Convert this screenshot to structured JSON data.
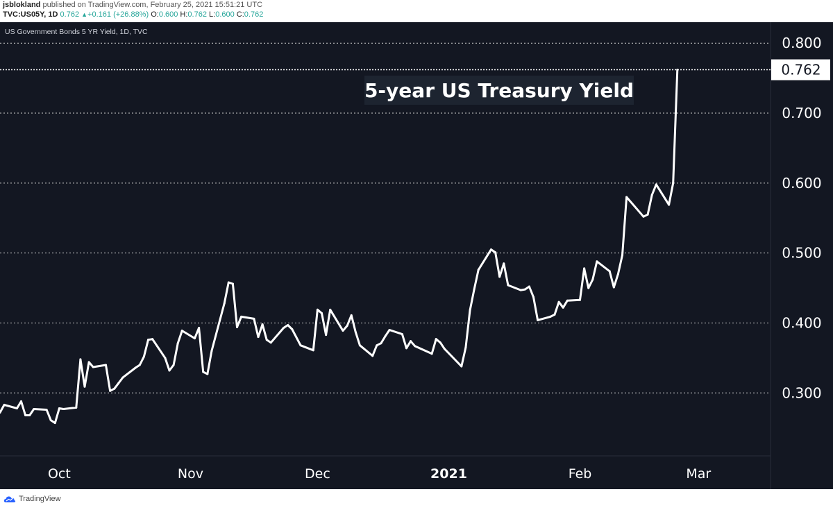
{
  "header": {
    "author": "jsblokland",
    "published": "published on TradingView.com, February 25, 2021 15:51:21 UTC",
    "symbol": "TVC:US05Y, 1D",
    "last": "0.762",
    "change": "+0.161 (+26.88%)",
    "open_label": "O:",
    "open": "0.600",
    "high_label": "H:",
    "high": "0.762",
    "low_label": "L:",
    "low": "0.600",
    "close_label": "C:",
    "close": "0.762"
  },
  "colors": {
    "background": "#131722",
    "line": "#ffffff",
    "accent_up": "#26a69a",
    "grid": "#d0d0d0"
  },
  "footer": {
    "brand": "TradingView",
    "icon": "tradingview-logo-icon"
  },
  "chart_data": {
    "type": "line",
    "title": "US Government Bonds 5 YR Yield, 1D, TVC",
    "annotation": "5-year US Treasury Yield",
    "last_price_label": "0.762",
    "ylim": [
      0.21,
      0.83
    ],
    "y_ticks": [
      0.3,
      0.4,
      0.5,
      0.6,
      0.7,
      0.8
    ],
    "y_tick_labels": [
      "0.300",
      "0.400",
      "0.500",
      "0.600",
      "0.700",
      "0.800"
    ],
    "grid": "horizontal dashed",
    "xlim": [
      "2020-09-17",
      "2021-03-18"
    ],
    "x_ticks": [
      {
        "date": "2020-10-01",
        "label": "Oct"
      },
      {
        "date": "2020-11-01",
        "label": "Nov"
      },
      {
        "date": "2020-12-01",
        "label": "Dec"
      },
      {
        "date": "2021-01-01",
        "label": "2021"
      },
      {
        "date": "2021-02-01",
        "label": "Feb"
      },
      {
        "date": "2021-03-01",
        "label": "Mar"
      }
    ],
    "series": [
      {
        "values": [
          [
            "2020-09-17",
            0.272
          ],
          [
            "2020-09-18",
            0.283
          ],
          [
            "2020-09-21",
            0.278
          ],
          [
            "2020-09-22",
            0.288
          ],
          [
            "2020-09-23",
            0.268
          ],
          [
            "2020-09-24",
            0.268
          ],
          [
            "2020-09-25",
            0.277
          ],
          [
            "2020-09-28",
            0.276
          ],
          [
            "2020-09-29",
            0.261
          ],
          [
            "2020-09-30",
            0.257
          ],
          [
            "2020-10-01",
            0.278
          ],
          [
            "2020-10-02",
            0.277
          ],
          [
            "2020-10-05",
            0.279
          ],
          [
            "2020-10-06",
            0.348
          ],
          [
            "2020-10-07",
            0.309
          ],
          [
            "2020-10-08",
            0.344
          ],
          [
            "2020-10-09",
            0.337
          ],
          [
            "2020-10-12",
            0.34
          ],
          [
            "2020-10-13",
            0.303
          ],
          [
            "2020-10-14",
            0.306
          ],
          [
            "2020-10-15",
            0.314
          ],
          [
            "2020-10-16",
            0.322
          ],
          [
            "2020-10-19",
            0.336
          ],
          [
            "2020-10-20",
            0.34
          ],
          [
            "2020-10-21",
            0.352
          ],
          [
            "2020-10-22",
            0.376
          ],
          [
            "2020-10-23",
            0.377
          ],
          [
            "2020-10-26",
            0.35
          ],
          [
            "2020-10-27",
            0.332
          ],
          [
            "2020-10-28",
            0.34
          ],
          [
            "2020-10-29",
            0.371
          ],
          [
            "2020-10-30",
            0.389
          ],
          [
            "2020-11-02",
            0.378
          ],
          [
            "2020-11-03",
            0.393
          ],
          [
            "2020-11-04",
            0.33
          ],
          [
            "2020-11-05",
            0.327
          ],
          [
            "2020-11-06",
            0.36
          ],
          [
            "2020-11-09",
            0.428
          ],
          [
            "2020-11-10",
            0.458
          ],
          [
            "2020-11-11",
            0.456
          ],
          [
            "2020-11-12",
            0.394
          ],
          [
            "2020-11-13",
            0.409
          ],
          [
            "2020-11-16",
            0.406
          ],
          [
            "2020-11-17",
            0.38
          ],
          [
            "2020-11-18",
            0.398
          ],
          [
            "2020-11-19",
            0.376
          ],
          [
            "2020-11-20",
            0.372
          ],
          [
            "2020-11-23",
            0.393
          ],
          [
            "2020-11-24",
            0.397
          ],
          [
            "2020-11-25",
            0.391
          ],
          [
            "2020-11-27",
            0.368
          ],
          [
            "2020-11-30",
            0.361
          ],
          [
            "2020-12-01",
            0.419
          ],
          [
            "2020-12-02",
            0.414
          ],
          [
            "2020-12-03",
            0.383
          ],
          [
            "2020-12-04",
            0.419
          ],
          [
            "2020-12-07",
            0.389
          ],
          [
            "2020-12-08",
            0.396
          ],
          [
            "2020-12-09",
            0.411
          ],
          [
            "2020-12-10",
            0.387
          ],
          [
            "2020-12-11",
            0.368
          ],
          [
            "2020-12-14",
            0.353
          ],
          [
            "2020-12-15",
            0.368
          ],
          [
            "2020-12-16",
            0.371
          ],
          [
            "2020-12-17",
            0.381
          ],
          [
            "2020-12-18",
            0.39
          ],
          [
            "2020-12-21",
            0.384
          ],
          [
            "2020-12-22",
            0.364
          ],
          [
            "2020-12-23",
            0.374
          ],
          [
            "2020-12-24",
            0.367
          ],
          [
            "2020-12-28",
            0.356
          ],
          [
            "2020-12-29",
            0.377
          ],
          [
            "2020-12-30",
            0.372
          ],
          [
            "2020-12-31",
            0.363
          ],
          [
            "2021-01-04",
            0.338
          ],
          [
            "2021-01-05",
            0.365
          ],
          [
            "2021-01-06",
            0.418
          ],
          [
            "2021-01-07",
            0.448
          ],
          [
            "2021-01-08",
            0.476
          ],
          [
            "2021-01-11",
            0.505
          ],
          [
            "2021-01-12",
            0.501
          ],
          [
            "2021-01-13",
            0.466
          ],
          [
            "2021-01-14",
            0.485
          ],
          [
            "2021-01-15",
            0.454
          ],
          [
            "2021-01-18",
            0.447
          ],
          [
            "2021-01-19",
            0.448
          ],
          [
            "2021-01-20",
            0.452
          ],
          [
            "2021-01-21",
            0.437
          ],
          [
            "2021-01-22",
            0.404
          ],
          [
            "2021-01-25",
            0.409
          ],
          [
            "2021-01-26",
            0.412
          ],
          [
            "2021-01-27",
            0.43
          ],
          [
            "2021-01-28",
            0.422
          ],
          [
            "2021-01-29",
            0.432
          ],
          [
            "2021-02-01",
            0.433
          ],
          [
            "2021-02-02",
            0.478
          ],
          [
            "2021-02-03",
            0.45
          ],
          [
            "2021-02-04",
            0.462
          ],
          [
            "2021-02-05",
            0.488
          ],
          [
            "2021-02-08",
            0.474
          ],
          [
            "2021-02-09",
            0.451
          ],
          [
            "2021-02-10",
            0.47
          ],
          [
            "2021-02-11",
            0.497
          ],
          [
            "2021-02-12",
            0.58
          ],
          [
            "2021-02-16",
            0.552
          ],
          [
            "2021-02-17",
            0.555
          ],
          [
            "2021-02-18",
            0.583
          ],
          [
            "2021-02-19",
            0.598
          ],
          [
            "2021-02-22",
            0.569
          ],
          [
            "2021-02-23",
            0.6
          ],
          [
            "2021-02-24",
            0.762
          ]
        ]
      }
    ]
  }
}
